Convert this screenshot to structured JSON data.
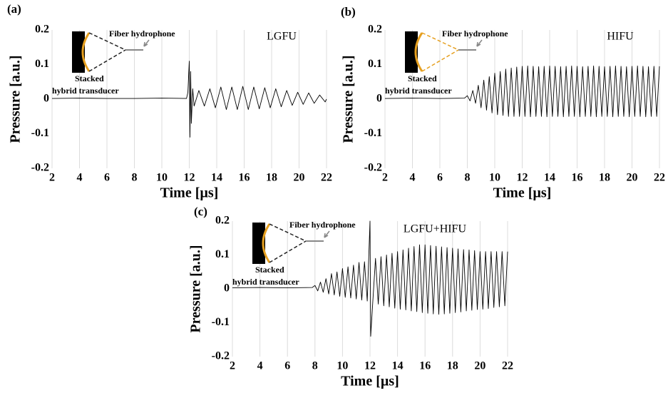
{
  "chart_data": [
    {
      "type": "line",
      "panel_label": "(a)",
      "title": "LGFU",
      "inset_labels": [
        "Fiber hydrophone",
        "Stacked",
        "hybrid transducer"
      ],
      "xlabel": "Time [µs]",
      "ylabel": "Pressure [a.u.]",
      "xlim": [
        2,
        22
      ],
      "xticks": [
        2,
        4,
        6,
        8,
        10,
        12,
        14,
        16,
        18,
        20,
        22
      ],
      "ylim": [
        -0.2,
        0.2
      ],
      "yticks": [
        -0.2,
        -0.1,
        0,
        0.1,
        0.2
      ],
      "grid": "x",
      "color": "#000000",
      "x": [
        2,
        4,
        6,
        8,
        10,
        11.8,
        11.9,
        12.0,
        12.05,
        12.1,
        12.15,
        12.25,
        12.35,
        12.7,
        13.1,
        13.5,
        13.9,
        14.3,
        14.7,
        15.1,
        15.5,
        15.9,
        16.3,
        16.7,
        17.1,
        17.5,
        17.9,
        18.3,
        18.7,
        19.1,
        19.5,
        19.9,
        20.3,
        20.7,
        21.1,
        21.5,
        21.9,
        22
      ],
      "values": [
        0.002,
        0.003,
        0.002,
        0.002,
        0.003,
        0.002,
        0.02,
        0.11,
        -0.11,
        0.08,
        -0.07,
        0.03,
        -0.02,
        0.025,
        -0.02,
        0.03,
        -0.025,
        0.035,
        -0.03,
        0.035,
        -0.03,
        0.037,
        -0.03,
        0.035,
        -0.028,
        0.033,
        -0.025,
        0.03,
        -0.022,
        0.025,
        -0.018,
        0.02,
        -0.015,
        0.018,
        -0.012,
        0.012,
        -0.008,
        0
      ]
    },
    {
      "type": "line",
      "panel_label": "(b)",
      "title": "HIFU",
      "inset_labels": [
        "Fiber hydrophone",
        "Stacked",
        "hybrid transducer"
      ],
      "xlabel": "Time [µs]",
      "ylabel": "Pressure [a.u.]",
      "xlim": [
        2,
        22
      ],
      "xticks": [
        2,
        4,
        6,
        8,
        10,
        12,
        14,
        16,
        18,
        20,
        22
      ],
      "ylim": [
        -0.2,
        0.2
      ],
      "yticks": [
        -0.2,
        -0.1,
        0,
        0.1,
        0.2
      ],
      "grid": "x",
      "color": "#000000",
      "x": [
        2,
        4,
        6,
        7.8,
        8.0,
        8.2,
        8.4,
        8.6,
        8.8,
        9.0,
        9.2,
        9.4,
        9.6,
        9.8,
        10.0,
        10.2,
        10.4,
        10.6,
        10.8,
        11.0,
        11.2,
        11.4,
        11.6,
        11.8,
        12.0,
        12.2,
        12.4,
        12.6,
        12.8,
        13.0,
        13.2,
        13.4,
        13.6,
        13.8,
        14.0,
        14.2,
        14.4,
        14.6,
        14.8,
        15.0,
        15.2,
        15.4,
        15.6,
        15.8,
        16.0,
        16.2,
        16.4,
        16.6,
        16.8,
        17.0,
        17.2,
        17.4,
        17.6,
        17.8,
        18.0,
        18.2,
        18.4,
        18.6,
        18.8,
        19.0,
        19.2,
        19.4,
        19.6,
        19.8,
        20.0,
        20.2,
        20.4,
        20.6,
        20.8,
        21.0,
        21.2,
        21.4,
        21.6,
        21.8,
        22.0
      ],
      "values": [
        0.002,
        0.003,
        0.002,
        0.003,
        0.01,
        -0.005,
        0.025,
        -0.012,
        0.04,
        -0.025,
        0.055,
        -0.032,
        0.065,
        -0.04,
        0.075,
        -0.045,
        0.08,
        -0.047,
        0.087,
        -0.05,
        0.09,
        -0.05,
        0.093,
        -0.05,
        0.095,
        -0.05,
        0.096,
        -0.051,
        0.095,
        -0.05,
        0.094,
        -0.05,
        0.095,
        -0.051,
        0.096,
        -0.05,
        0.095,
        -0.05,
        0.094,
        -0.051,
        0.095,
        -0.05,
        0.096,
        -0.05,
        0.095,
        -0.051,
        0.094,
        -0.05,
        0.095,
        -0.05,
        0.096,
        -0.051,
        0.095,
        -0.05,
        0.094,
        -0.05,
        0.095,
        -0.051,
        0.096,
        -0.05,
        0.095,
        -0.05,
        0.094,
        -0.051,
        0.095,
        -0.05,
        0.096,
        -0.05,
        0.095,
        -0.051,
        0.094,
        -0.05,
        0.095,
        -0.05,
        0.095
      ]
    },
    {
      "type": "line",
      "panel_label": "(c)",
      "title": "LGFU+HIFU",
      "inset_labels": [
        "Fiber hydrophone",
        "Stacked",
        "hybrid transducer"
      ],
      "xlabel": "Time [µs]",
      "ylabel": "Pressure [a.u.]",
      "xlim": [
        2,
        22
      ],
      "xticks": [
        2,
        4,
        6,
        8,
        10,
        12,
        14,
        16,
        18,
        20,
        22
      ],
      "ylim": [
        -0.2,
        0.2
      ],
      "yticks": [
        -0.2,
        -0.1,
        0,
        0.1,
        0.2
      ],
      "grid": "x",
      "color": "#000000",
      "x": [
        2,
        4,
        6,
        7.8,
        8.0,
        8.2,
        8.4,
        8.6,
        8.8,
        9.0,
        9.2,
        9.4,
        9.6,
        9.8,
        10.0,
        10.2,
        10.4,
        10.6,
        10.8,
        11.0,
        11.2,
        11.4,
        11.6,
        11.8,
        12.0,
        12.05,
        12.2,
        12.4,
        12.6,
        12.8,
        13.0,
        13.2,
        13.4,
        13.6,
        13.8,
        14.0,
        14.2,
        14.4,
        14.6,
        14.8,
        15.0,
        15.2,
        15.4,
        15.6,
        15.8,
        16.0,
        16.2,
        16.4,
        16.6,
        16.8,
        17.0,
        17.2,
        17.4,
        17.6,
        17.8,
        18.0,
        18.2,
        18.4,
        18.6,
        18.8,
        19.0,
        19.2,
        19.4,
        19.6,
        19.8,
        20.0,
        20.2,
        20.4,
        20.6,
        20.8,
        21.0,
        21.2,
        21.4,
        21.6,
        21.8,
        22.0
      ],
      "values": [
        0.003,
        0.004,
        0.003,
        0.004,
        0.01,
        -0.006,
        0.02,
        -0.01,
        0.03,
        -0.015,
        0.045,
        -0.018,
        0.05,
        -0.022,
        0.06,
        -0.025,
        0.065,
        -0.027,
        0.07,
        -0.03,
        0.078,
        -0.033,
        0.08,
        -0.036,
        0.2,
        -0.14,
        -0.04,
        0.09,
        -0.045,
        0.095,
        -0.05,
        0.1,
        -0.053,
        0.105,
        -0.057,
        0.11,
        -0.06,
        0.115,
        -0.062,
        0.12,
        -0.065,
        0.125,
        -0.067,
        0.13,
        -0.07,
        0.13,
        -0.072,
        0.128,
        -0.074,
        0.126,
        -0.075,
        0.124,
        -0.074,
        0.122,
        -0.072,
        0.12,
        -0.07,
        0.118,
        -0.068,
        0.116,
        -0.065,
        0.115,
        -0.063,
        0.113,
        -0.061,
        0.11,
        -0.06,
        0.11,
        -0.058,
        0.11,
        -0.055,
        0.11,
        -0.053,
        0.11,
        -0.05,
        0.11
      ]
    }
  ]
}
